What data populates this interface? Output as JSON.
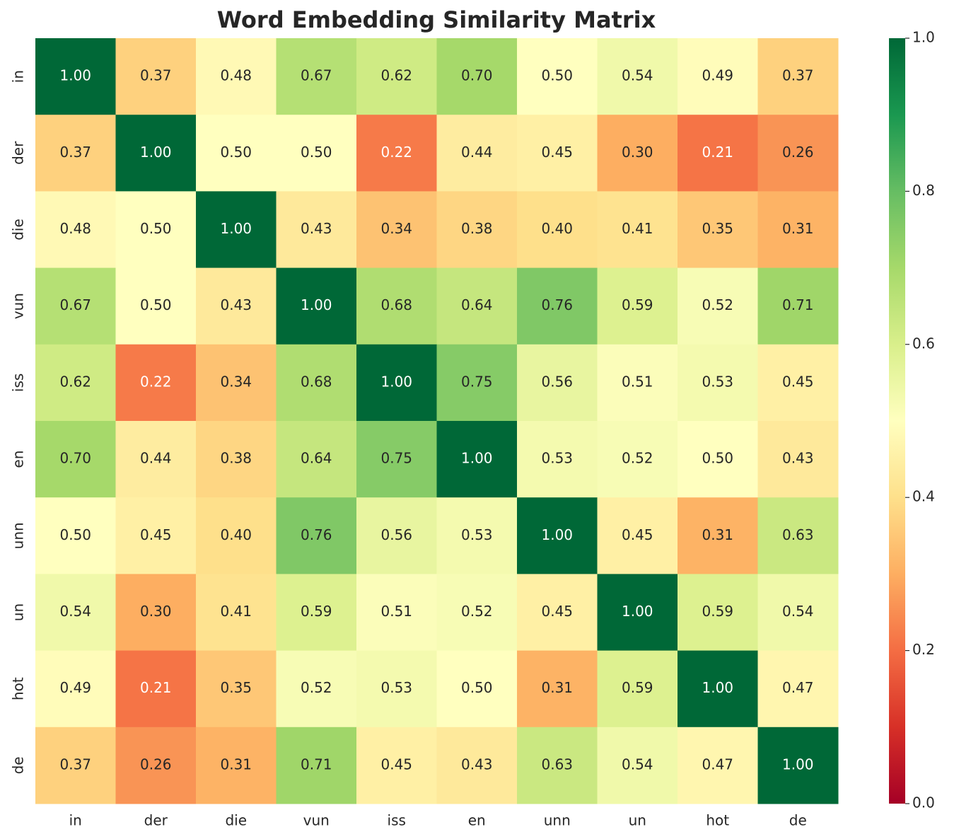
{
  "chart_data": {
    "type": "heatmap",
    "title": "Word Embedding Similarity Matrix",
    "x_categories": [
      "in",
      "der",
      "die",
      "vun",
      "iss",
      "en",
      "unn",
      "un",
      "hot",
      "de"
    ],
    "y_categories": [
      "in",
      "der",
      "die",
      "vun",
      "iss",
      "en",
      "unn",
      "un",
      "hot",
      "de"
    ],
    "values": [
      [
        1,
        0.37,
        0.48,
        0.67,
        0.62,
        0.7,
        0.5,
        0.54,
        0.49,
        0.37
      ],
      [
        0.37,
        1,
        0.5,
        0.5,
        0.22,
        0.44,
        0.45,
        0.3,
        0.21,
        0.26
      ],
      [
        0.48,
        0.5,
        1,
        0.43,
        0.34,
        0.38,
        0.4,
        0.41,
        0.35,
        0.31
      ],
      [
        0.67,
        0.5,
        0.43,
        1,
        0.68,
        0.64,
        0.76,
        0.59,
        0.52,
        0.71
      ],
      [
        0.62,
        0.22,
        0.34,
        0.68,
        1,
        0.75,
        0.56,
        0.51,
        0.53,
        0.45
      ],
      [
        0.7,
        0.44,
        0.38,
        0.64,
        0.75,
        1,
        0.53,
        0.52,
        0.5,
        0.43
      ],
      [
        0.5,
        0.45,
        0.4,
        0.76,
        0.56,
        0.53,
        1,
        0.45,
        0.31,
        0.63
      ],
      [
        0.54,
        0.3,
        0.41,
        0.59,
        0.51,
        0.52,
        0.45,
        1,
        0.59,
        0.54
      ],
      [
        0.49,
        0.21,
        0.35,
        0.52,
        0.53,
        0.5,
        0.31,
        0.59,
        1,
        0.47
      ],
      [
        0.37,
        0.26,
        0.31,
        0.71,
        0.45,
        0.43,
        0.63,
        0.54,
        0.47,
        1
      ]
    ],
    "value_labels": [
      [
        "1.00",
        "0.37",
        "0.48",
        "0.67",
        "0.62",
        "0.70",
        "0.50",
        "0.54",
        "0.49",
        "0.37"
      ],
      [
        "0.37",
        "1.00",
        "0.50",
        "0.50",
        "0.22",
        "0.44",
        "0.45",
        "0.30",
        "0.21",
        "0.26"
      ],
      [
        "0.48",
        "0.50",
        "1.00",
        "0.43",
        "0.34",
        "0.38",
        "0.40",
        "0.41",
        "0.35",
        "0.31"
      ],
      [
        "0.67",
        "0.50",
        "0.43",
        "1.00",
        "0.68",
        "0.64",
        "0.76",
        "0.59",
        "0.52",
        "0.71"
      ],
      [
        "0.62",
        "0.22",
        "0.34",
        "0.68",
        "1.00",
        "0.75",
        "0.56",
        "0.51",
        "0.53",
        "0.45"
      ],
      [
        "0.70",
        "0.44",
        "0.38",
        "0.64",
        "0.75",
        "1.00",
        "0.53",
        "0.52",
        "0.50",
        "0.43"
      ],
      [
        "0.50",
        "0.45",
        "0.40",
        "0.76",
        "0.56",
        "0.53",
        "1.00",
        "0.45",
        "0.31",
        "0.63"
      ],
      [
        "0.54",
        "0.30",
        "0.41",
        "0.59",
        "0.51",
        "0.52",
        "0.45",
        "1.00",
        "0.59",
        "0.54"
      ],
      [
        "0.49",
        "0.21",
        "0.35",
        "0.52",
        "0.53",
        "0.50",
        "0.31",
        "0.59",
        "1.00",
        "0.47"
      ],
      [
        "0.37",
        "0.26",
        "0.31",
        "0.71",
        "0.45",
        "0.43",
        "0.63",
        "0.54",
        "0.47",
        "1.00"
      ]
    ],
    "zlim": [
      0,
      1
    ],
    "zticks": [
      {
        "value": 0,
        "label": "0.0"
      },
      0.2,
      0.4,
      0.6,
      0.8,
      {
        "value": 1,
        "label": "1.0"
      }
    ],
    "colormap": [
      "#a50026",
      "#d73027",
      "#f46d43",
      "#fdae61",
      "#fee08b",
      "#ffffbf",
      "#d9ef8b",
      "#a6d96a",
      "#66bd63",
      "#1a9850",
      "#006837"
    ]
  }
}
